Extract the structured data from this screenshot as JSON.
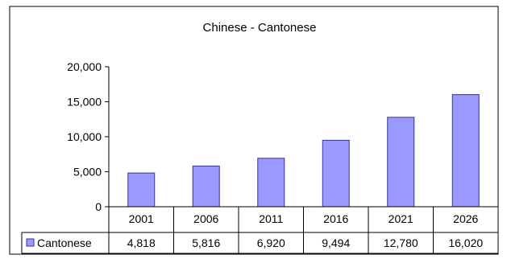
{
  "chart_data": {
    "type": "bar",
    "title": "Chinese - Cantonese",
    "categories": [
      "2001",
      "2006",
      "2011",
      "2016",
      "2021",
      "2026"
    ],
    "series": [
      {
        "name": "Cantonese",
        "values": [
          4818,
          5816,
          6920,
          9494,
          12780,
          16020
        ]
      }
    ],
    "value_labels": [
      "4,818",
      "5,816",
      "6,920",
      "9,494",
      "12,780",
      "16,020"
    ],
    "y_ticks": [
      "0",
      "5,000",
      "10,000",
      "15,000",
      "20,000"
    ],
    "ylim": [
      0,
      20000
    ],
    "grid": false,
    "legend": "data-table",
    "colors": {
      "bar": "#9999FF",
      "bar_stroke": "#333399",
      "axis": "#000000"
    }
  }
}
